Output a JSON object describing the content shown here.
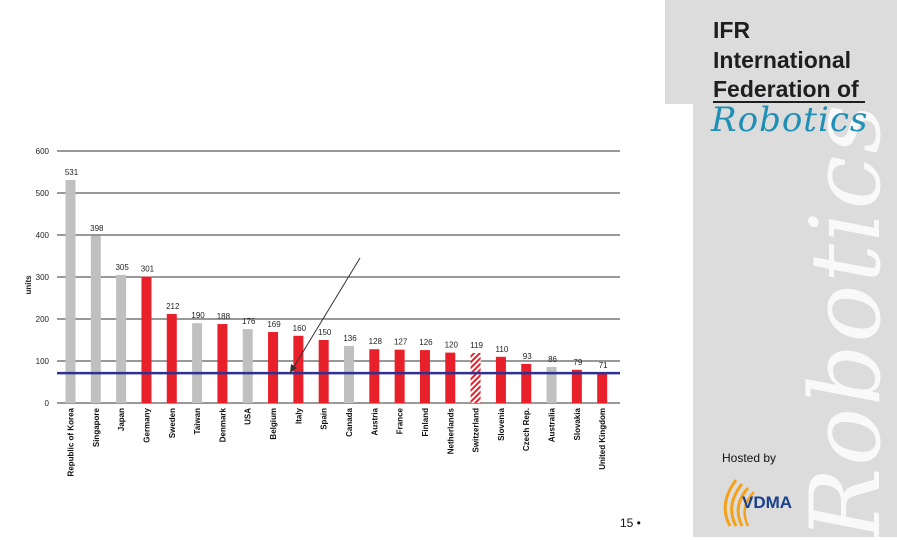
{
  "brand": {
    "line1": "IFR",
    "line2": "International",
    "line3": "Federation of",
    "script": "Robotics",
    "watermark": "Robotics",
    "hosted_by": "Hosted by",
    "vdma": "VDMA",
    "colors": {
      "script": "#1f8fb5",
      "panel": "#dcdcdc",
      "vdma_orange": "#f5a21b",
      "vdma_blue": "#1a3f8c"
    }
  },
  "page_number": "15 •",
  "chart_data": {
    "type": "bar",
    "title": "",
    "xlabel": "",
    "ylabel": "units",
    "ylim": [
      0,
      600
    ],
    "yticks": [
      0,
      100,
      200,
      300,
      400,
      500,
      600
    ],
    "grid": true,
    "reference_line": {
      "value": 71,
      "color": "#2e3192"
    },
    "colors": {
      "red": "#e8202a",
      "gray": "#c0c0c0"
    },
    "categories": [
      "Republic of Korea",
      "Singapore",
      "Japan",
      "Germany",
      "Sweden",
      "Taiwan",
      "Denmark",
      "USA",
      "Belgium",
      "Italy",
      "Spain",
      "Canada",
      "Austria",
      "France",
      "Finland",
      "Netherlands",
      "Switzerland",
      "Slovenia",
      "Czech Rep.",
      "Australia",
      "Slovakia",
      "United Kingdom"
    ],
    "values": [
      531,
      398,
      305,
      301,
      212,
      190,
      188,
      176,
      169,
      160,
      150,
      136,
      128,
      127,
      126,
      120,
      119,
      110,
      93,
      86,
      79,
      71
    ],
    "bar_styles": [
      "gray",
      "gray",
      "gray",
      "red",
      "red",
      "gray",
      "red",
      "gray",
      "red",
      "red",
      "red",
      "gray",
      "red",
      "red",
      "red",
      "red",
      "hatched",
      "red",
      "red",
      "gray",
      "red",
      "red"
    ]
  }
}
